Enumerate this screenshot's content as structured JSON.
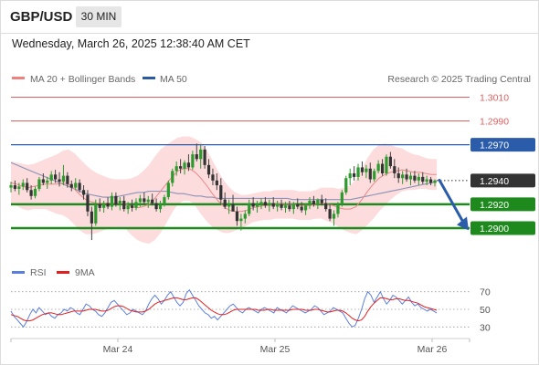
{
  "header": {
    "symbol": "GBP/USD",
    "timeframe": "30 MIN",
    "datetime": "Wednesday, March 26, 2025 12:38:40 AM CET"
  },
  "legend": {
    "ma20_label": "MA 20 + Bollinger Bands",
    "ma50_label": "MA 50",
    "credit": "Research © 2025 Trading Central",
    "ma20_color": "#f08080",
    "ma50_color": "#2c5aa0"
  },
  "rsi_legend": {
    "rsi_label": "RSI",
    "ma_label": "9MA",
    "rsi_color": "#5b7fde",
    "ma_color": "#e02020"
  },
  "levels": [
    {
      "value": "1.3010",
      "style": "resistance-thin",
      "color": "#e06060"
    },
    {
      "value": "1.2990",
      "style": "resistance-thin",
      "color": "#e06060"
    },
    {
      "value": "1.2970",
      "style": "pivot",
      "color": "#2a5caa"
    },
    {
      "value": "1.2940",
      "style": "last-price",
      "color": "#333333"
    },
    {
      "value": "1.2920",
      "style": "support",
      "color": "#1e8a1e"
    },
    {
      "value": "1.2900",
      "style": "support",
      "color": "#1e8a1e"
    }
  ],
  "chart_data": {
    "type": "candlestick",
    "price_axis": {
      "min": 1.2887,
      "max": 1.3018
    },
    "x_axis": {
      "ticks": [
        "Mar 24",
        "Mar 25",
        "Mar 26"
      ]
    },
    "candles_ohlc": [
      [
        1.2934,
        1.2939,
        1.293,
        1.2936
      ],
      [
        1.2936,
        1.294,
        1.2931,
        1.2933
      ],
      [
        1.2933,
        1.2938,
        1.2928,
        1.2935
      ],
      [
        1.2935,
        1.2941,
        1.2932,
        1.2938
      ],
      [
        1.2938,
        1.2942,
        1.293,
        1.2932
      ],
      [
        1.2932,
        1.2936,
        1.2924,
        1.2927
      ],
      [
        1.2927,
        1.2935,
        1.2925,
        1.2933
      ],
      [
        1.2933,
        1.2943,
        1.2931,
        1.2941
      ],
      [
        1.2941,
        1.2946,
        1.2936,
        1.2938
      ],
      [
        1.2938,
        1.2943,
        1.2933,
        1.294
      ],
      [
        1.294,
        1.2948,
        1.2937,
        1.2945
      ],
      [
        1.2945,
        1.2949,
        1.2938,
        1.2941
      ],
      [
        1.2941,
        1.2947,
        1.2935,
        1.2939
      ],
      [
        1.2939,
        1.2953,
        1.2936,
        1.2944
      ],
      [
        1.2944,
        1.2947,
        1.2934,
        1.2937
      ],
      [
        1.2937,
        1.294,
        1.2931,
        1.2934
      ],
      [
        1.2934,
        1.2942,
        1.2932,
        1.2938
      ],
      [
        1.2938,
        1.2941,
        1.293,
        1.2932
      ],
      [
        1.2932,
        1.2936,
        1.2924,
        1.2928
      ],
      [
        1.2928,
        1.2932,
        1.291,
        1.2914
      ],
      [
        1.2914,
        1.2918,
        1.289,
        1.2904
      ],
      [
        1.2904,
        1.2924,
        1.2902,
        1.292
      ],
      [
        1.292,
        1.2925,
        1.2914,
        1.2917
      ],
      [
        1.2917,
        1.2923,
        1.2913,
        1.2921
      ],
      [
        1.2921,
        1.2926,
        1.2916,
        1.2918
      ],
      [
        1.2918,
        1.293,
        1.2915,
        1.2927
      ],
      [
        1.2927,
        1.293,
        1.2918,
        1.292
      ],
      [
        1.292,
        1.2926,
        1.2915,
        1.2923
      ],
      [
        1.2923,
        1.2927,
        1.2914,
        1.2916
      ],
      [
        1.2916,
        1.2922,
        1.2912,
        1.2919
      ],
      [
        1.2919,
        1.2924,
        1.2914,
        1.2917
      ],
      [
        1.2917,
        1.2925,
        1.2915,
        1.2922
      ],
      [
        1.2922,
        1.2928,
        1.2918,
        1.2925
      ],
      [
        1.2925,
        1.293,
        1.292,
        1.2922
      ],
      [
        1.2922,
        1.2927,
        1.2917,
        1.2924
      ],
      [
        1.2924,
        1.2929,
        1.2919,
        1.2921
      ],
      [
        1.2921,
        1.2925,
        1.2914,
        1.2916
      ],
      [
        1.2916,
        1.2923,
        1.2913,
        1.292
      ],
      [
        1.292,
        1.2928,
        1.2918,
        1.2926
      ],
      [
        1.2926,
        1.294,
        1.2924,
        1.2938
      ],
      [
        1.2938,
        1.295,
        1.2935,
        1.2948
      ],
      [
        1.2948,
        1.2956,
        1.2944,
        1.2952
      ],
      [
        1.2952,
        1.2958,
        1.2946,
        1.295
      ],
      [
        1.295,
        1.2957,
        1.2945,
        1.2955
      ],
      [
        1.2955,
        1.2962,
        1.2948,
        1.2951
      ],
      [
        1.2951,
        1.2965,
        1.2949,
        1.2962
      ],
      [
        1.2962,
        1.2971,
        1.2956,
        1.2958
      ],
      [
        1.2958,
        1.297,
        1.295,
        1.2966
      ],
      [
        1.2966,
        1.2969,
        1.295,
        1.2953
      ],
      [
        1.2953,
        1.2958,
        1.2942,
        1.2945
      ],
      [
        1.2945,
        1.295,
        1.2936,
        1.294
      ],
      [
        1.294,
        1.2946,
        1.2932,
        1.2936
      ],
      [
        1.2936,
        1.2942,
        1.292,
        1.2924
      ],
      [
        1.2924,
        1.293,
        1.2916,
        1.2918
      ],
      [
        1.2918,
        1.2924,
        1.2912,
        1.292
      ],
      [
        1.292,
        1.2928,
        1.2916,
        1.2914
      ],
      [
        1.2914,
        1.2918,
        1.2902,
        1.2906
      ],
      [
        1.2906,
        1.2912,
        1.2898,
        1.2908
      ],
      [
        1.2908,
        1.2915,
        1.2904,
        1.2912
      ],
      [
        1.2912,
        1.2924,
        1.291,
        1.2921
      ],
      [
        1.2921,
        1.2926,
        1.2915,
        1.2918
      ],
      [
        1.2918,
        1.2923,
        1.2913,
        1.292
      ],
      [
        1.292,
        1.2925,
        1.2916,
        1.2922
      ],
      [
        1.2922,
        1.2926,
        1.2917,
        1.2919
      ],
      [
        1.2919,
        1.2924,
        1.2914,
        1.2921
      ],
      [
        1.2921,
        1.2926,
        1.2916,
        1.2918
      ],
      [
        1.2918,
        1.2923,
        1.2914,
        1.292
      ],
      [
        1.292,
        1.2924,
        1.2915,
        1.2917
      ],
      [
        1.2917,
        1.2922,
        1.2913,
        1.2919
      ],
      [
        1.2919,
        1.2923,
        1.2914,
        1.2916
      ],
      [
        1.2916,
        1.2922,
        1.2912,
        1.292
      ],
      [
        1.292,
        1.2925,
        1.2916,
        1.2918
      ],
      [
        1.2918,
        1.2922,
        1.2913,
        1.2915
      ],
      [
        1.2915,
        1.2921,
        1.2911,
        1.2919
      ],
      [
        1.2919,
        1.2926,
        1.2916,
        1.2923
      ],
      [
        1.2923,
        1.2927,
        1.2918,
        1.292
      ],
      [
        1.292,
        1.2925,
        1.2916,
        1.2924
      ],
      [
        1.2924,
        1.2928,
        1.2919,
        1.2921
      ],
      [
        1.2921,
        1.2925,
        1.2914,
        1.2916
      ],
      [
        1.2916,
        1.292,
        1.2906,
        1.2908
      ],
      [
        1.2908,
        1.2915,
        1.2902,
        1.2912
      ],
      [
        1.2912,
        1.2922,
        1.2909,
        1.292
      ],
      [
        1.292,
        1.2932,
        1.2918,
        1.293
      ],
      [
        1.293,
        1.2944,
        1.2928,
        1.2942
      ],
      [
        1.2942,
        1.295,
        1.2936,
        1.2946
      ],
      [
        1.2946,
        1.2952,
        1.294,
        1.2943
      ],
      [
        1.2943,
        1.2954,
        1.294,
        1.2951
      ],
      [
        1.2951,
        1.2956,
        1.2944,
        1.2947
      ],
      [
        1.2947,
        1.2953,
        1.2942,
        1.295
      ],
      [
        1.295,
        1.2955,
        1.2938,
        1.2941
      ],
      [
        1.2941,
        1.295,
        1.2939,
        1.2948
      ],
      [
        1.2948,
        1.2957,
        1.2946,
        1.2954
      ],
      [
        1.2954,
        1.2958,
        1.2944,
        1.2946
      ],
      [
        1.2946,
        1.2962,
        1.2944,
        1.296
      ],
      [
        1.296,
        1.2964,
        1.295,
        1.2952
      ],
      [
        1.2952,
        1.2958,
        1.2942,
        1.2946
      ],
      [
        1.2946,
        1.2951,
        1.2938,
        1.2942
      ],
      [
        1.2942,
        1.2948,
        1.2937,
        1.2945
      ],
      [
        1.2945,
        1.295,
        1.2939,
        1.2941
      ],
      [
        1.2941,
        1.2947,
        1.2936,
        1.2944
      ],
      [
        1.2944,
        1.2948,
        1.2938,
        1.294
      ],
      [
        1.294,
        1.2946,
        1.2936,
        1.2943
      ],
      [
        1.2943,
        1.2947,
        1.2937,
        1.2939
      ],
      [
        1.2939,
        1.2944,
        1.2936,
        1.2941
      ],
      [
        1.2941,
        1.2943,
        1.2936,
        1.2938
      ],
      [
        1.2938,
        1.2941,
        1.2935,
        1.294
      ]
    ],
    "ma20": [
      1.2938,
      1.2937,
      1.2935,
      1.2934,
      1.2935,
      1.2936,
      1.2937,
      1.2937,
      1.2937,
      1.2938,
      1.2937,
      1.2933,
      1.2928,
      1.2924,
      1.2922,
      1.2921,
      1.2921,
      1.2921,
      1.2921,
      1.2921,
      1.292,
      1.2918,
      1.2917,
      1.2918,
      1.292,
      1.2925,
      1.2931,
      1.2937,
      1.2943,
      1.2948,
      1.295,
      1.295,
      1.2947,
      1.2942,
      1.2936,
      1.2929,
      1.2923,
      1.2918,
      1.2915,
      1.2914,
      1.2914,
      1.2915,
      1.2917,
      1.2918,
      1.2919,
      1.2919,
      1.292,
      1.292,
      1.292,
      1.292,
      1.2919,
      1.2919,
      1.2919,
      1.292,
      1.2921,
      1.292,
      1.2919,
      1.2917,
      1.2916,
      1.2916,
      1.2918,
      1.2924,
      1.2931,
      1.2937,
      1.2942,
      1.2945,
      1.2947,
      1.2948,
      1.2949,
      1.2948,
      1.2947,
      1.2947,
      1.2946,
      1.2945,
      1.2945
    ],
    "ma50": [
      1.2955,
      1.2953,
      1.2951,
      1.2949,
      1.2947,
      1.2945,
      1.2943,
      1.2941,
      1.2939,
      1.2937,
      1.2935,
      1.2933,
      1.2931,
      1.2929,
      1.2928,
      1.2927,
      1.2926,
      1.2926,
      1.2926,
      1.2927,
      1.2928,
      1.2929,
      1.293,
      1.293,
      1.2931,
      1.2931,
      1.2931,
      1.2931,
      1.293,
      1.2929,
      1.2929,
      1.2928,
      1.2927,
      1.2927,
      1.2926,
      1.2926,
      1.2925,
      1.2925,
      1.2925,
      1.2925,
      1.2925,
      1.2925,
      1.2925,
      1.2925,
      1.2925,
      1.2925,
      1.2925,
      1.2925,
      1.2925,
      1.2924,
      1.2924,
      1.2924,
      1.2924,
      1.2924,
      1.2924,
      1.2924,
      1.2924,
      1.2924,
      1.2924,
      1.2924,
      1.2925,
      1.2926,
      1.2927,
      1.2928,
      1.2929,
      1.293,
      1.2931,
      1.2932,
      1.2933,
      1.2934,
      1.2935,
      1.2936,
      1.2937,
      1.2938,
      1.2939
    ],
    "bb_width": [
      0.0018,
      0.0018,
      0.0019,
      0.0019,
      0.0019,
      0.002,
      0.0021,
      0.0023,
      0.0025,
      0.0027,
      0.0029,
      0.003,
      0.003,
      0.0029,
      0.0027,
      0.0025,
      0.0023,
      0.0021,
      0.002,
      0.002,
      0.0021,
      0.0024,
      0.0027,
      0.003,
      0.0033,
      0.0035,
      0.0035,
      0.0033,
      0.003,
      0.0028,
      0.0027,
      0.0027,
      0.0028,
      0.003,
      0.003,
      0.0028,
      0.0025,
      0.0022,
      0.0019,
      0.0016,
      0.0014,
      0.0013,
      0.0012,
      0.0012,
      0.0012,
      0.0012,
      0.0012,
      0.0012,
      0.0012,
      0.0012,
      0.0012,
      0.0012,
      0.0012,
      0.0012,
      0.0013,
      0.0014,
      0.0015,
      0.0016,
      0.0018,
      0.002,
      0.0023,
      0.0026,
      0.0028,
      0.0029,
      0.0028,
      0.0026,
      0.0023,
      0.002,
      0.0018,
      0.0016,
      0.0015,
      0.0014,
      0.0013,
      0.0013,
      0.0013
    ],
    "forecast_arrow": {
      "from": 1.2938,
      "to": 1.2902
    },
    "rsi": {
      "levels": [
        70,
        50,
        30
      ],
      "range": [
        20,
        80
      ],
      "rsi_values": [
        48,
        42,
        38,
        34,
        30,
        36,
        44,
        50,
        46,
        52,
        48,
        44,
        46,
        42,
        40,
        44,
        46,
        50,
        48,
        52,
        50,
        46,
        44,
        50,
        56,
        54,
        50,
        48,
        44,
        42,
        46,
        52,
        58,
        60,
        56,
        52,
        48,
        44,
        46,
        50,
        48,
        46,
        44,
        48,
        56,
        62,
        66,
        62,
        56,
        60,
        66,
        70,
        64,
        58,
        54,
        58,
        68,
        72,
        66,
        60,
        54,
        50,
        46,
        44,
        40,
        42,
        38,
        42,
        46,
        50,
        54,
        56,
        52,
        48,
        46,
        50,
        52,
        50,
        48,
        46,
        50,
        52,
        50,
        48,
        46,
        52,
        50,
        48,
        46,
        50,
        54,
        52,
        50,
        48,
        46,
        48,
        50,
        54,
        52,
        48,
        44,
        46,
        48,
        52,
        50,
        48,
        46,
        40,
        34,
        30,
        32,
        40,
        50,
        62,
        70,
        66,
        58,
        64,
        70,
        62,
        56,
        60,
        66,
        64,
        60,
        56,
        60,
        64,
        58,
        54,
        56,
        52,
        50,
        48,
        50,
        48,
        46
      ],
      "ma_values": [
        44,
        43,
        42,
        40,
        38,
        37,
        37,
        38,
        40,
        42,
        44,
        45,
        46,
        46,
        45,
        44,
        44,
        45,
        46,
        47,
        48,
        48,
        48,
        48,
        49,
        50,
        50,
        50,
        49,
        48,
        48,
        49,
        51,
        53,
        54,
        54,
        53,
        51,
        49,
        48,
        47,
        47,
        47,
        48,
        50,
        53,
        56,
        58,
        59,
        60,
        61,
        62,
        63,
        63,
        62,
        61,
        61,
        62,
        63,
        63,
        61,
        58,
        55,
        52,
        49,
        47,
        45,
        44,
        44,
        45,
        47,
        49,
        50,
        50,
        50,
        50,
        50,
        50,
        50,
        49,
        49,
        49,
        50,
        50,
        49,
        49,
        49,
        49,
        49,
        49,
        50,
        50,
        50,
        50,
        49,
        49,
        49,
        50,
        50,
        49,
        48,
        47,
        47,
        48,
        49,
        49,
        48,
        46,
        43,
        40,
        38,
        37,
        38,
        42,
        48,
        53,
        57,
        60,
        63,
        63,
        62,
        61,
        61,
        62,
        62,
        61,
        60,
        60,
        59,
        58,
        57,
        55,
        53,
        52,
        51,
        50,
        49
      ]
    }
  }
}
